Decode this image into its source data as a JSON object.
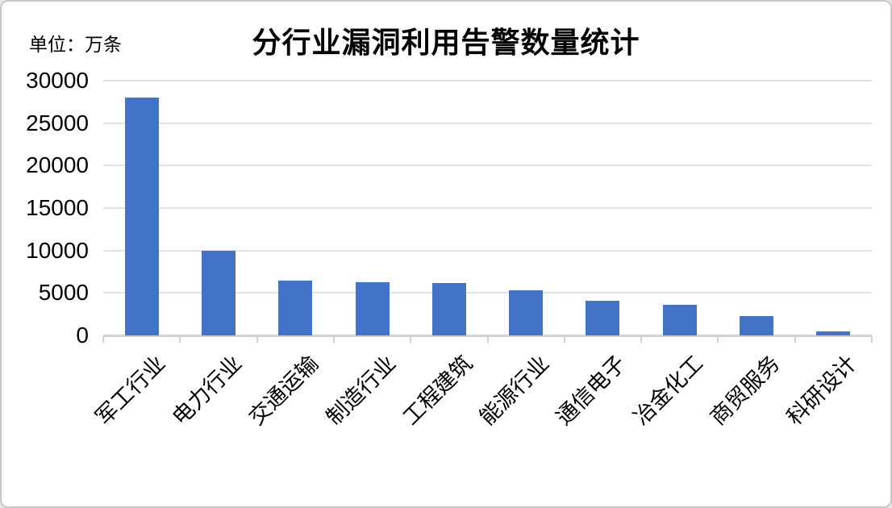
{
  "chart_data": {
    "type": "bar",
    "title": "分行业漏洞利用告警数量统计",
    "unit_label": "单位：万条",
    "categories": [
      "军工行业",
      "电力行业",
      "交通运输",
      "制造行业",
      "工程建筑",
      "能源行业",
      "通信电子",
      "冶金化工",
      "商贸服务",
      "科研设计"
    ],
    "values": [
      28000,
      10000,
      6500,
      6300,
      6200,
      5300,
      4100,
      3650,
      2300,
      500
    ],
    "xlabel": "",
    "ylabel": "",
    "ylim": [
      0,
      30000
    ],
    "yticks": [
      0,
      5000,
      10000,
      15000,
      20000,
      25000,
      30000
    ],
    "grid": true,
    "legend_position": "none",
    "bar_color": "#4472C4",
    "gridline_color": "#E4E4E4",
    "axis_color": "#D2D2D2",
    "text_color": "#000000",
    "background": "#FFFFFF"
  }
}
